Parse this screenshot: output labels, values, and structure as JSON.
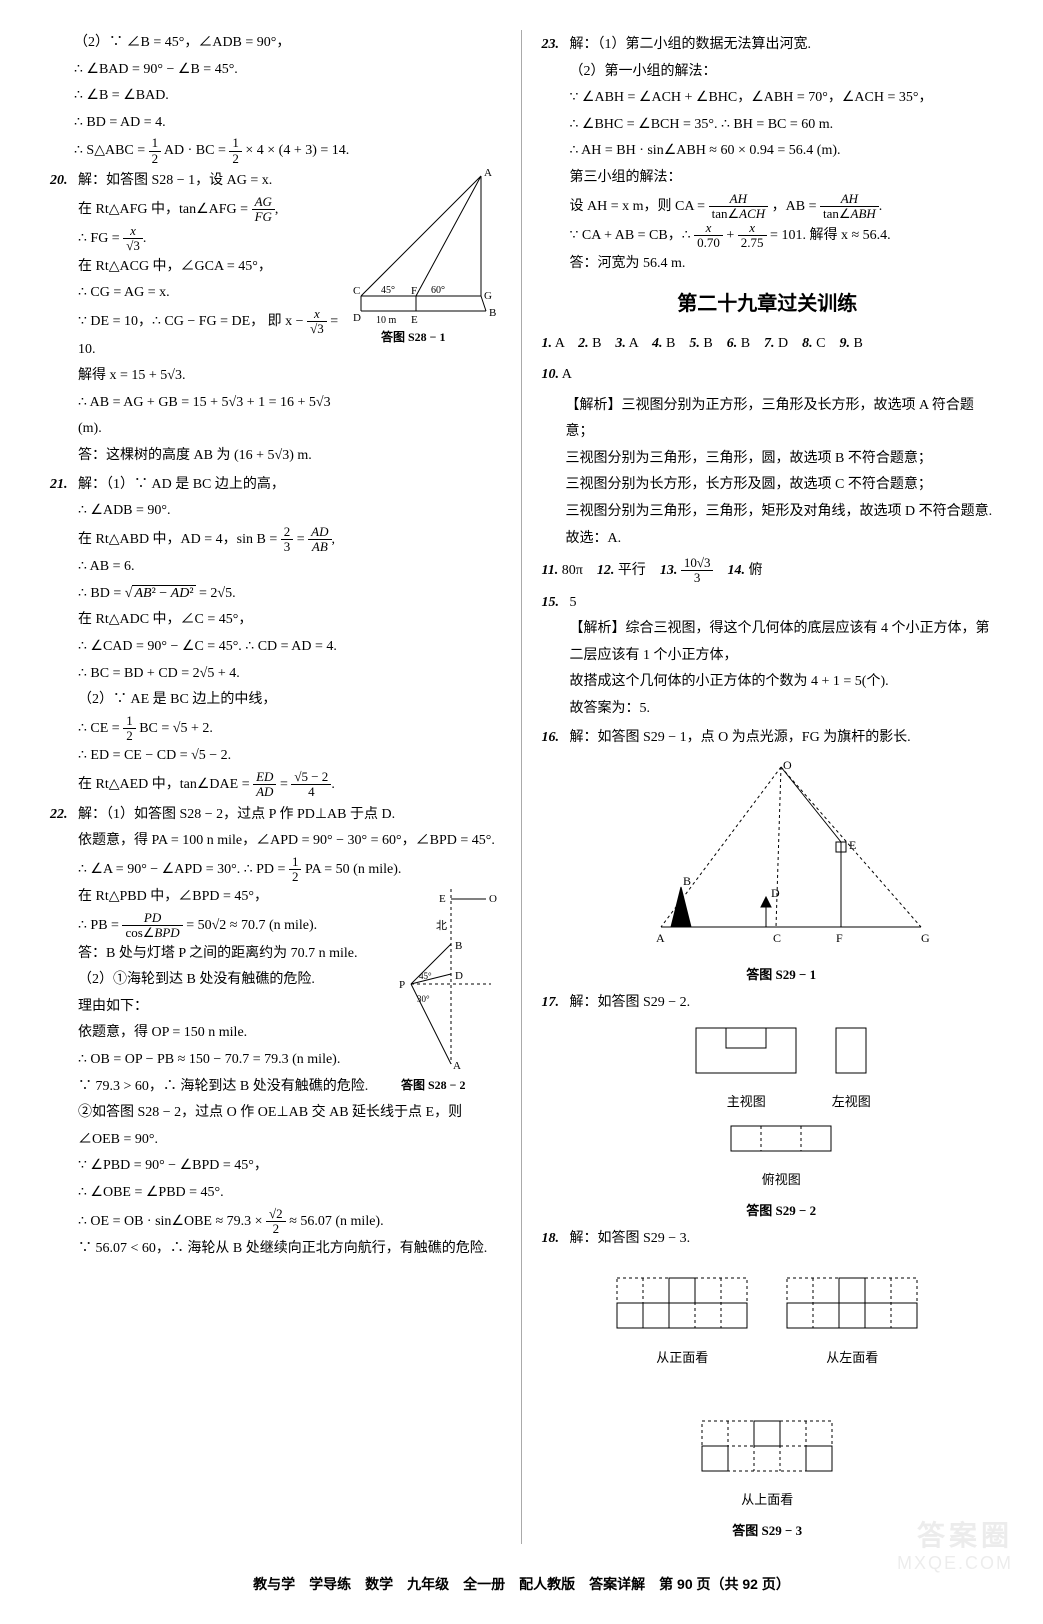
{
  "left": {
    "p19": {
      "l1": "（2）∵ ∠B = 45°，∠ADB = 90°，",
      "l2": "∴ ∠BAD = 90° − ∠B = 45°.",
      "l3": "∴ ∠B = ∠BAD.",
      "l4": "∴ BD = AD = 4.",
      "l5a": "∴ S△ABC = ",
      "l5b": " AD · BC = ",
      "l5c": " × 4 × (4 + 3) = 14."
    },
    "p20": {
      "num": "20.",
      "l1": "解：如答图 S28 − 1，设 AG = x.",
      "l2a": "在 Rt△AFG 中，tan∠AFG = ",
      "l3a": "∴ FG = ",
      "l4": "在 Rt△ACG 中，∠GCA = 45°，",
      "l5": "∴ CG = AG = x.",
      "l6a": "∵ DE = 10，∴ CG − FG = DE，  即 x − ",
      "l6b": " = 10.",
      "l7": "解得 x = 15 + 5√3.",
      "l8": "∴ AB = AG + GB = 15 + 5√3 + 1 = 16 + 5√3 (m).",
      "l9": "答：这棵树的高度 AB 为 (16 + 5√3) m.",
      "fig_caption": "答图 S28 − 1",
      "fig": {
        "labels": {
          "A": "A",
          "B": "B",
          "C": "C",
          "D": "D",
          "E": "E",
          "F": "F",
          "G": "G"
        },
        "angle1": "45°",
        "angle2": "60°",
        "base": "10 m"
      }
    },
    "p21": {
      "num": "21.",
      "l1": "解：（1）∵ AD 是 BC 边上的高，",
      "l2": "∴ ∠ADB = 90°.",
      "l3a": "在 Rt△ABD 中，AD = 4，sin B = ",
      "l3b": " = ",
      "l4": "∴ AB = 6.",
      "l5a": "∴ BD = ",
      "l5b": " = 2√5.",
      "l6": "在 Rt△ADC 中，∠C = 45°，",
      "l7": "∴ ∠CAD = 90° − ∠C = 45°.  ∴ CD = AD = 4.",
      "l8": "∴ BC = BD + CD = 2√5 + 4.",
      "l9": "（2）∵ AE 是 BC 边上的中线，",
      "l10a": "∴ CE = ",
      "l10b": "BC = √5 + 2.",
      "l11": "∴ ED = CE − CD = √5 − 2.",
      "l12a": "在 Rt△AED 中，tan∠DAE = ",
      "l12b": " = "
    },
    "p22": {
      "num": "22.",
      "l1": "解：（1）如答图 S28 − 2，过点 P 作 PD⊥AB 于点 D.",
      "l2": "依题意，得 PA = 100 n mile，∠APD = 90° − 30° = 60°，∠BPD = 45°.",
      "l3a": "∴ ∠A = 90° − ∠APD = 30°.  ∴ PD = ",
      "l3b": "PA = 50 (n mile).",
      "l4": "在 Rt△PBD 中，∠BPD = 45°，",
      "l5a": "∴ PB = ",
      "l5b": " = 50√2 ≈ 70.7 (n mile).",
      "l6": "答：B 处与灯塔 P 之间的距离约为 70.7 n mile.",
      "l7": "（2）①海轮到达 B 处没有触礁的危险.",
      "l8": "理由如下：",
      "l9": "依题意，得 OP = 150 n mile.",
      "l10": "∴ OB = OP − PB ≈ 150 − 70.7 = 79.3 (n mile).",
      "l11": "∵ 79.3 > 60，∴ 海轮到达 B 处没有触礁的危险.",
      "l12": "②如答图 S28 − 2，过点 O 作 OE⊥AB 交 AB 延长线于点 E，则∠OEB = 90°.",
      "l13": "∵ ∠PBD = 90° − ∠BPD = 45°，",
      "l14": "∴ ∠OBE = ∠PBD = 45°.",
      "l15a": "∴ OE = OB · sin∠OBE ≈ 79.3 × ",
      "l15b": " ≈ 56.07 (n mile).",
      "l16": "∵ 56.07 < 60，∴ 海轮从 B 处继续向正北方向航行，有触礁的危险.",
      "fig_caption": "答图 S28 − 2",
      "fig": {
        "labels": {
          "O": "O",
          "E": "E",
          "B": "B",
          "D": "D",
          "P": "P",
          "A": "A",
          "north": "北"
        },
        "a1": "45°",
        "a2": "30°"
      }
    }
  },
  "right": {
    "p23": {
      "num": "23.",
      "l1": "解：（1）第二小组的数据无法算出河宽.",
      "l2": "（2）第一小组的解法：",
      "l3": "∵ ∠ABH = ∠ACH + ∠BHC，∠ABH = 70°，∠ACH = 35°，",
      "l4": "∴ ∠BHC = ∠BCH = 35°.  ∴ BH = BC = 60 m.",
      "l5": "∴ AH = BH · sin∠ABH ≈ 60 × 0.94 = 56.4 (m).",
      "l6": "第三小组的解法：",
      "l7a": "设 AH = x m，则 CA = ",
      "l7b": "，AB = ",
      "l8a": "∵ CA + AB = CB，∴ ",
      "l8b": " + ",
      "l8c": " = 101.  解得 x ≈ 56.4.",
      "l9": "答：河宽为 56.4 m."
    },
    "chapter": "第二十九章过关训练",
    "answers": {
      "row1": [
        {
          "n": "1.",
          "a": "A"
        },
        {
          "n": "2.",
          "a": "B"
        },
        {
          "n": "3.",
          "a": "A"
        },
        {
          "n": "4.",
          "a": "B"
        },
        {
          "n": "5.",
          "a": "B"
        },
        {
          "n": "6.",
          "a": "B"
        },
        {
          "n": "7.",
          "a": "D"
        },
        {
          "n": "8.",
          "a": "C"
        },
        {
          "n": "9.",
          "a": "B"
        }
      ],
      "row2": [
        {
          "n": "10.",
          "a": "A"
        }
      ]
    },
    "p10": {
      "l1": "【解析】三视图分别为正方形，三角形及长方形，故选项 A 符合题意；",
      "l2": "三视图分别为三角形，三角形，圆，故选项 B 不符合题意；",
      "l3": "三视图分别为长方形，长方形及圆，故选项 C 不符合题意；",
      "l4": "三视图分别为三角形，三角形，矩形及对角线，故选项 D 不符合题意.",
      "l5": "故选：A."
    },
    "row3": [
      {
        "n": "11.",
        "a": "80π"
      },
      {
        "n": "12.",
        "a": "平行"
      },
      {
        "n": "13.",
        "frac_n": "10√3",
        "frac_d": "3"
      },
      {
        "n": "14.",
        "a": "俯"
      }
    ],
    "p15": {
      "num": "15.",
      "ans": "5",
      "l1": "【解析】综合三视图，得这个几何体的底层应该有 4 个小正方体，第二层应该有 1 个小正方体，",
      "l2": "故搭成这个几何体的小正方体的个数为 4 + 1 = 5(个).",
      "l3": "故答案为：5."
    },
    "p16": {
      "num": "16.",
      "l1": "解：如答图 S29 − 1，点 O 为点光源，FG 为旗杆的影长.",
      "fig_caption": "答图 S29 − 1",
      "labels": {
        "O": "O",
        "A": "A",
        "B": "B",
        "C": "C",
        "D": "D",
        "E": "E",
        "F": "F",
        "G": "G"
      }
    },
    "p17": {
      "num": "17.",
      "l1": "解：如答图 S29 − 2.",
      "v1": "主视图",
      "v2": "左视图",
      "v3": "俯视图",
      "fig_caption": "答图 S29 − 2"
    },
    "p18": {
      "num": "18.",
      "l1": "解：如答图 S29 − 3.",
      "v1": "从正面看",
      "v2": "从左面看",
      "v3": "从上面看",
      "fig_caption": "答图 S29 − 3"
    }
  },
  "footer": "教与学　学导练　数学　九年级　全一册　配人教版　答案详解　第 90 页（共 92 页）",
  "watermark": "答案圈",
  "wm_url": "MXQE.COM",
  "colors": {
    "text": "#000000",
    "rule": "#aaaaaa",
    "bg": "#ffffff",
    "svg_stroke": "#000000"
  }
}
